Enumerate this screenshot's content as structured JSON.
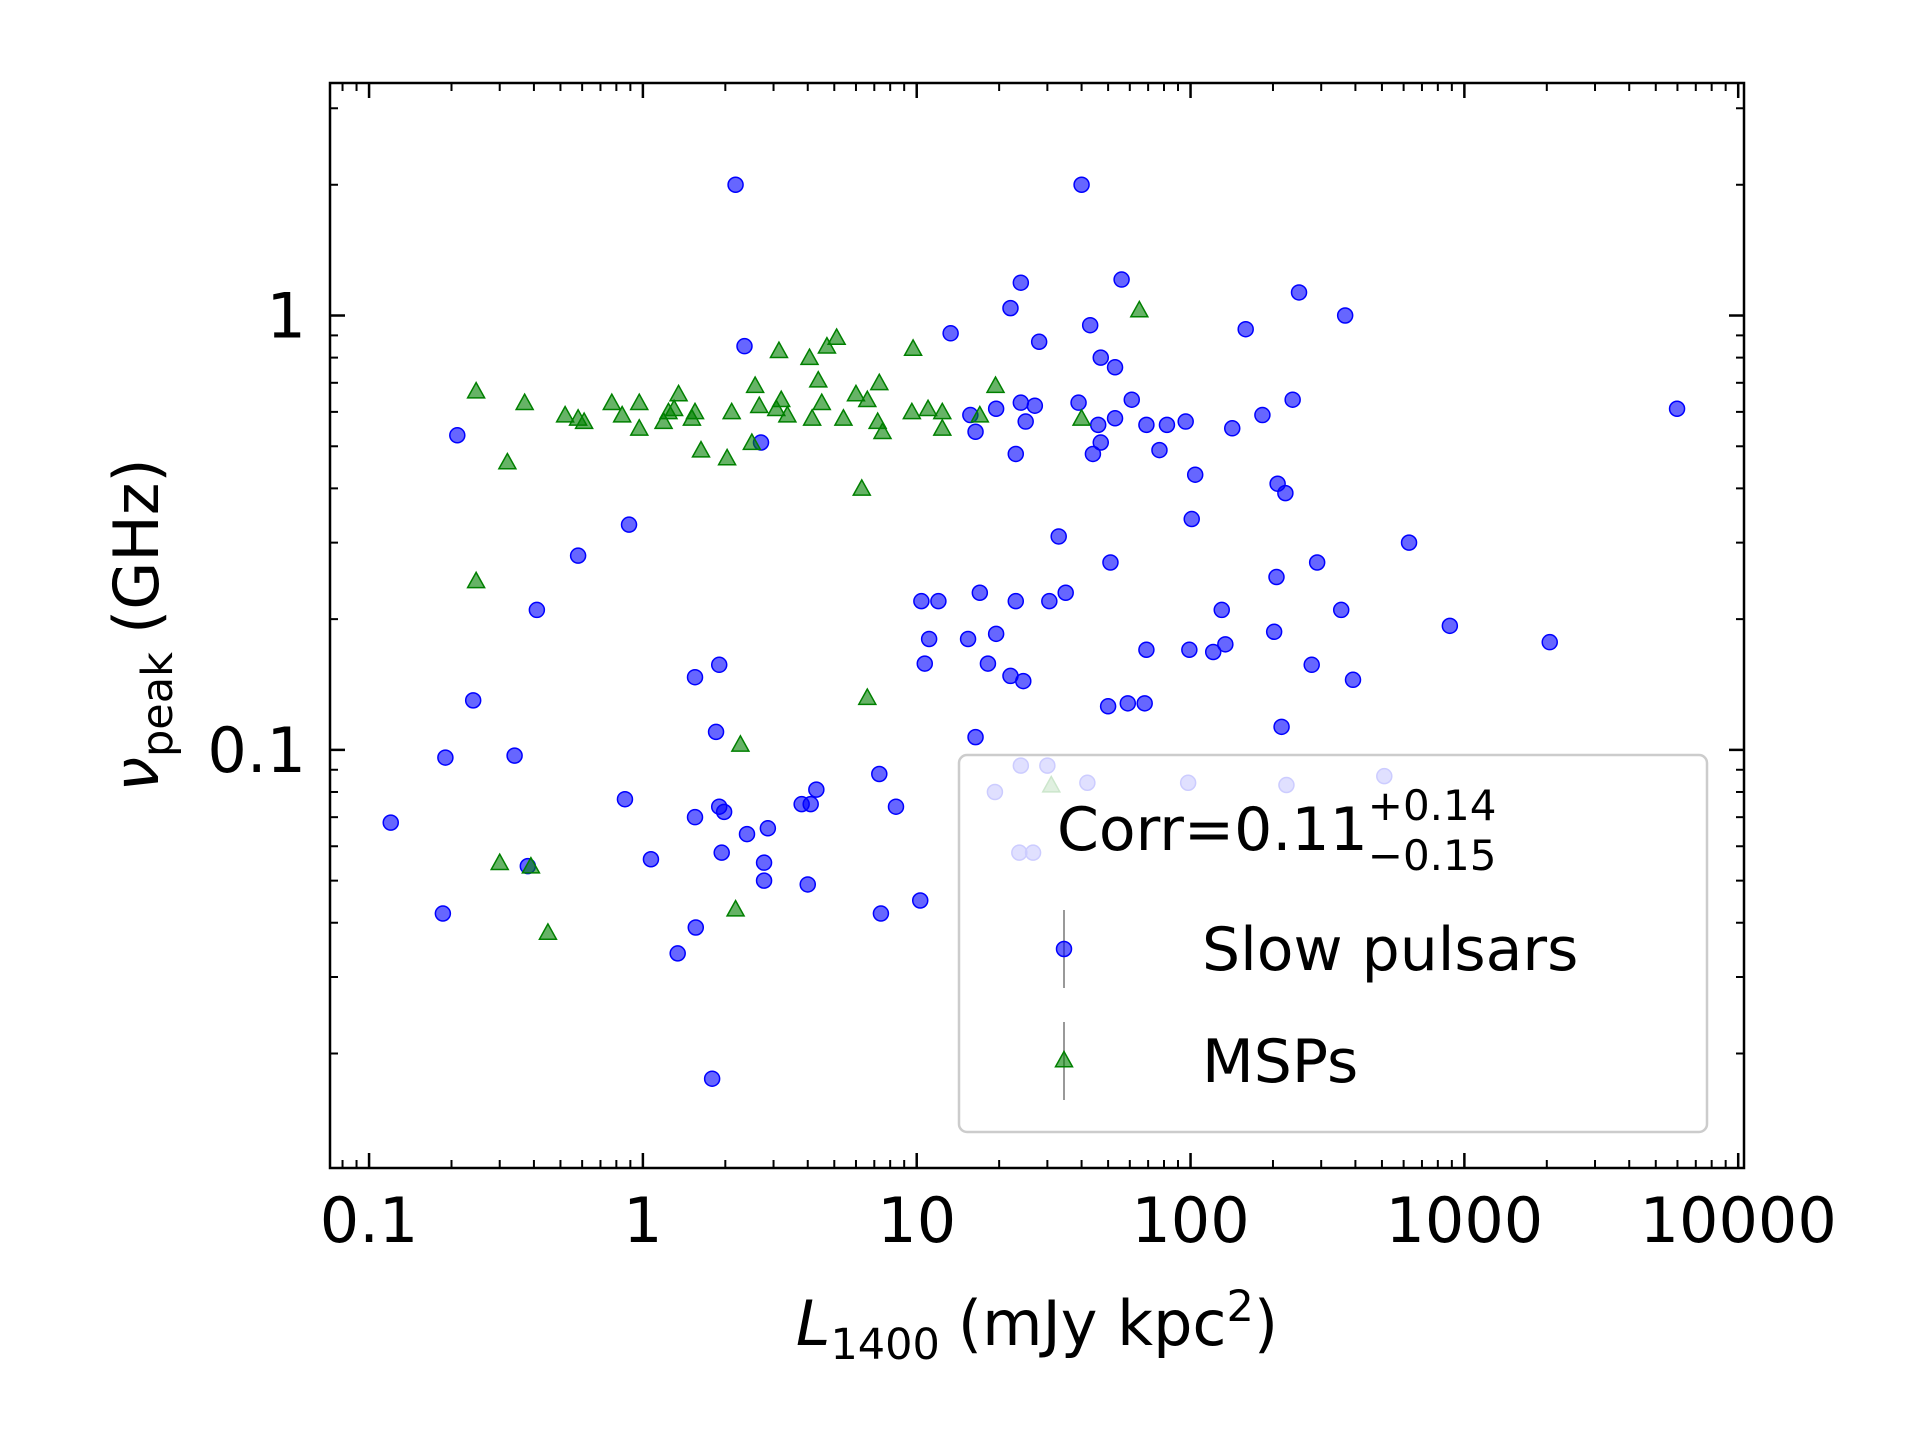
{
  "chart_data": {
    "type": "scatter",
    "xlabel": {
      "symbol": "L",
      "subscript": "1400",
      "unit": "(mJy kpc",
      "superscript": "2",
      "close": ")"
    },
    "ylabel": {
      "symbol": "ν",
      "subscript": "peak",
      "unit": "(GHz)"
    },
    "annotation": {
      "text": "Corr=0.11",
      "upper": "+0.14",
      "lower": "−0.15"
    },
    "xscale": "log",
    "yscale": "log",
    "xlim": [
      0.072,
      10500
    ],
    "ylim": [
      0.0109,
      3.43
    ],
    "xticks": [
      0.1,
      1,
      10,
      100,
      1000,
      10000
    ],
    "yticks": [
      0.1,
      1
    ],
    "legend": "lower right",
    "series": [
      {
        "name": "Slow pulsars",
        "color": "#0000ff",
        "marker": "circle",
        "x": [
          2.18,
          40,
          56,
          24,
          249,
          22,
          367,
          43,
          159,
          13.3,
          28,
          2.35,
          47,
          53,
          0.21,
          2.7,
          15.7,
          16.4,
          19.5,
          24,
          27,
          25,
          23,
          39,
          46,
          44,
          47,
          53,
          61,
          69,
          82,
          96,
          77,
          142,
          183,
          236,
          104,
          208,
          222,
          101,
          628,
          0.89,
          0.58,
          33,
          51,
          290,
          0.41,
          0.24,
          0.19,
          0.34,
          0.12,
          0.186,
          0.38,
          0.86,
          1.07,
          1.55,
          1.9,
          1.85,
          1.55,
          1.9,
          1.98,
          1.94,
          2.4,
          2.77,
          2.77,
          2.86,
          3.8,
          4.1,
          4.3,
          4.0,
          1.56,
          1.34,
          1.79,
          7.4,
          10.3,
          7.3,
          8.4,
          10.4,
          12.0,
          10.7,
          11.1,
          15.4,
          17.0,
          19.5,
          18.2,
          23,
          22,
          24.5,
          16.4,
          30.5,
          35,
          50,
          59,
          68,
          69,
          99,
          121,
          134,
          130,
          202,
          206,
          277,
          355,
          392,
          215,
          885,
          2050,
          5980,
          24,
          30,
          42,
          98,
          224,
          510,
          23.7,
          26.6,
          19.3
        ],
        "values": [
          2.0,
          2.0,
          1.21,
          1.19,
          1.13,
          1.04,
          1.0,
          0.95,
          0.93,
          0.91,
          0.87,
          0.85,
          0.8,
          0.76,
          0.53,
          0.51,
          0.59,
          0.54,
          0.61,
          0.63,
          0.62,
          0.57,
          0.48,
          0.63,
          0.56,
          0.48,
          0.51,
          0.58,
          0.64,
          0.56,
          0.56,
          0.57,
          0.49,
          0.55,
          0.59,
          0.64,
          0.43,
          0.41,
          0.39,
          0.34,
          0.3,
          0.33,
          0.28,
          0.31,
          0.27,
          0.27,
          0.21,
          0.13,
          0.096,
          0.097,
          0.068,
          0.042,
          0.054,
          0.077,
          0.056,
          0.147,
          0.157,
          0.11,
          0.07,
          0.074,
          0.072,
          0.058,
          0.064,
          0.055,
          0.05,
          0.066,
          0.075,
          0.075,
          0.081,
          0.049,
          0.039,
          0.034,
          0.0175,
          0.042,
          0.045,
          0.088,
          0.074,
          0.22,
          0.22,
          0.158,
          0.18,
          0.18,
          0.23,
          0.185,
          0.158,
          0.22,
          0.148,
          0.144,
          0.107,
          0.22,
          0.23,
          0.126,
          0.128,
          0.128,
          0.17,
          0.17,
          0.168,
          0.175,
          0.21,
          0.187,
          0.25,
          0.157,
          0.21,
          0.145,
          0.113,
          0.193,
          0.177,
          0.61,
          0.092,
          0.092,
          0.084,
          0.084,
          0.083,
          0.087,
          0.058,
          0.058,
          0.08
        ]
      },
      {
        "name": "MSPs",
        "color": "#008000",
        "marker": "triangle",
        "x": [
          0.246,
          0.37,
          0.32,
          0.246,
          0.52,
          0.58,
          0.61,
          0.77,
          0.84,
          0.97,
          0.97,
          1.19,
          1.24,
          1.3,
          1.35,
          1.51,
          1.55,
          1.63,
          2.03,
          2.11,
          2.57,
          2.66,
          2.5,
          3.07,
          3.2,
          3.14,
          3.37,
          4.06,
          4.15,
          4.37,
          4.5,
          4.7,
          5.1,
          5.4,
          6.0,
          6.6,
          6.3,
          7.3,
          7.2,
          7.5,
          9.7,
          9.6,
          11.0,
          12.4,
          12.4,
          17,
          19.4,
          40,
          65,
          6.6,
          2.27,
          0.3,
          0.39,
          0.45,
          2.18,
          31
        ],
        "values": [
          0.67,
          0.63,
          0.46,
          0.245,
          0.59,
          0.58,
          0.57,
          0.63,
          0.59,
          0.63,
          0.55,
          0.57,
          0.6,
          0.61,
          0.66,
          0.58,
          0.6,
          0.49,
          0.47,
          0.6,
          0.69,
          0.62,
          0.51,
          0.61,
          0.64,
          0.83,
          0.59,
          0.8,
          0.58,
          0.71,
          0.63,
          0.85,
          0.89,
          0.58,
          0.66,
          0.64,
          0.4,
          0.7,
          0.57,
          0.54,
          0.84,
          0.6,
          0.61,
          0.6,
          0.55,
          0.59,
          0.69,
          0.58,
          1.03,
          0.132,
          0.103,
          0.055,
          0.054,
          0.038,
          0.043,
          0.083
        ]
      }
    ]
  }
}
